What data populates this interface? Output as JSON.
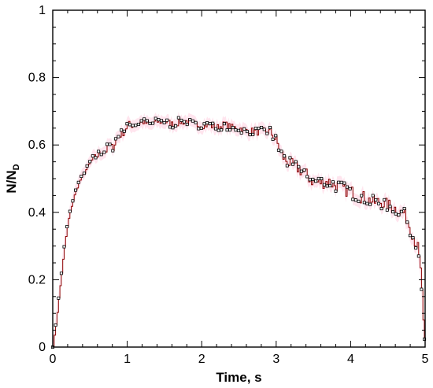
{
  "chart_data": {
    "type": "line",
    "xlabel": "Time, s",
    "ylabel": {
      "main": "N/N",
      "subscript": "D"
    },
    "xlim": [
      0,
      5
    ],
    "ylim": [
      0,
      1
    ],
    "x_ticks": [
      "0",
      "1",
      "2",
      "3",
      "4",
      "5"
    ],
    "y_ticks": [
      "0",
      "0.2",
      "0.4",
      "0.6",
      "0.8",
      "1"
    ],
    "x_tick_values": [
      0,
      1,
      2,
      3,
      4,
      5
    ],
    "y_tick_values": [
      0,
      0.2,
      0.4,
      0.6,
      0.8,
      1
    ],
    "grid": false,
    "legend": "none",
    "line_color": "#8b0000",
    "marker_color": "#000000",
    "envelope_color": "#ffd0e0",
    "series": [
      {
        "points": [
          [
            0.0,
            0.0
          ],
          [
            0.03,
            0.05
          ],
          [
            0.06,
            0.11
          ],
          [
            0.09,
            0.17
          ],
          [
            0.12,
            0.23
          ],
          [
            0.15,
            0.29
          ],
          [
            0.18,
            0.34
          ],
          [
            0.21,
            0.38
          ],
          [
            0.25,
            0.42
          ],
          [
            0.3,
            0.46
          ],
          [
            0.35,
            0.49
          ],
          [
            0.4,
            0.51
          ],
          [
            0.45,
            0.53
          ],
          [
            0.5,
            0.55
          ],
          [
            0.55,
            0.56
          ],
          [
            0.6,
            0.57
          ],
          [
            0.65,
            0.58
          ],
          [
            0.7,
            0.58
          ],
          [
            0.75,
            0.6
          ],
          [
            0.8,
            0.59
          ],
          [
            0.85,
            0.62
          ],
          [
            0.9,
            0.63
          ],
          [
            0.95,
            0.64
          ],
          [
            1.0,
            0.66
          ],
          [
            1.1,
            0.66
          ],
          [
            1.2,
            0.67
          ],
          [
            1.3,
            0.66
          ],
          [
            1.4,
            0.67
          ],
          [
            1.5,
            0.67
          ],
          [
            1.6,
            0.66
          ],
          [
            1.7,
            0.67
          ],
          [
            1.8,
            0.67
          ],
          [
            1.9,
            0.66
          ],
          [
            2.0,
            0.66
          ],
          [
            2.1,
            0.66
          ],
          [
            2.2,
            0.65
          ],
          [
            2.3,
            0.66
          ],
          [
            2.4,
            0.65
          ],
          [
            2.5,
            0.65
          ],
          [
            2.6,
            0.64
          ],
          [
            2.7,
            0.64
          ],
          [
            2.8,
            0.64
          ],
          [
            2.9,
            0.64
          ],
          [
            2.95,
            0.63
          ],
          [
            3.0,
            0.61
          ],
          [
            3.05,
            0.58
          ],
          [
            3.1,
            0.56
          ],
          [
            3.2,
            0.54
          ],
          [
            3.3,
            0.53
          ],
          [
            3.4,
            0.51
          ],
          [
            3.5,
            0.49
          ],
          [
            3.6,
            0.49
          ],
          [
            3.7,
            0.49
          ],
          [
            3.8,
            0.48
          ],
          [
            3.9,
            0.47
          ],
          [
            4.0,
            0.46
          ],
          [
            4.1,
            0.45
          ],
          [
            4.2,
            0.44
          ],
          [
            4.3,
            0.43
          ],
          [
            4.4,
            0.43
          ],
          [
            4.5,
            0.42
          ],
          [
            4.6,
            0.41
          ],
          [
            4.65,
            0.4
          ],
          [
            4.7,
            0.4
          ],
          [
            4.75,
            0.38
          ],
          [
            4.8,
            0.35
          ],
          [
            4.85,
            0.32
          ],
          [
            4.9,
            0.29
          ],
          [
            4.93,
            0.24
          ],
          [
            4.95,
            0.18
          ],
          [
            4.97,
            0.08
          ],
          [
            4.99,
            0.02
          ]
        ]
      }
    ]
  }
}
